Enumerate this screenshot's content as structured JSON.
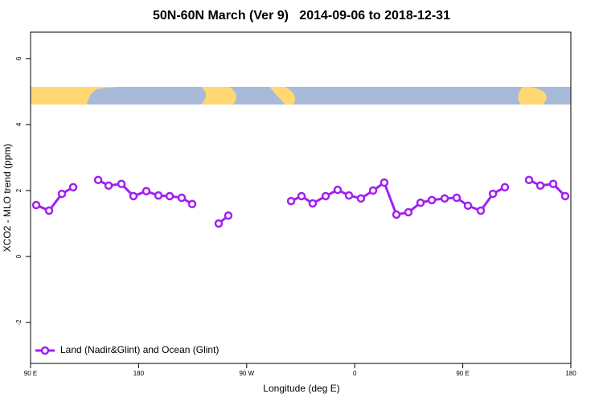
{
  "chart_data": {
    "type": "line",
    "title": "50N-60N March (Ver 9)   2014-09-06 to 2018-12-31",
    "x_label": "Longitude (deg E)",
    "y_label": "XCO2 - MLO trend (ppm)",
    "xlim": [
      90,
      540
    ],
    "ylim": [
      -3.24,
      6.8
    ],
    "xticks": [
      {
        "value": 90,
        "label": "90 E"
      },
      180,
      {
        "value": 270,
        "label": "90 W"
      },
      {
        "value": 360,
        "label": "0"
      },
      {
        "value": 450,
        "label": "90 E"
      },
      {
        "value": 540,
        "label": "180"
      }
    ],
    "yticks": [
      -2,
      0,
      2,
      4,
      6
    ],
    "legend": "bottom-left",
    "series": [
      {
        "name": "Land (Nadir&Glint) and Ocean (Glint)",
        "color": "#a020f0",
        "x": [
          94.7,
          105.4,
          116.1,
          125.5,
          null,
          146.3,
          155,
          165.7,
          175.7,
          186.4,
          196.5,
          205.9,
          215.9,
          224.6,
          null,
          246.7,
          254.7,
          null,
          307,
          315.7,
          325,
          335.8,
          345.8,
          355.2,
          365.2,
          375.3,
          384.6,
          394.7,
          404.7,
          414.8,
          424.2,
          434.9,
          444.9,
          454.3,
          465,
          475.1,
          485.1,
          null,
          505.2,
          514.6,
          525.3,
          535.3
        ],
        "values": [
          1.56,
          1.39,
          1.9,
          2.1,
          null,
          2.32,
          2.15,
          2.2,
          1.83,
          1.98,
          1.85,
          1.83,
          1.78,
          1.59,
          null,
          1.0,
          1.24,
          null,
          1.68,
          1.83,
          1.61,
          1.83,
          2.02,
          1.85,
          1.76,
          2.0,
          2.24,
          1.27,
          1.34,
          1.63,
          1.71,
          1.76,
          1.78,
          1.54,
          1.39,
          1.9,
          2.1,
          null,
          2.32,
          2.15,
          2.2,
          1.83
        ]
      }
    ]
  }
}
